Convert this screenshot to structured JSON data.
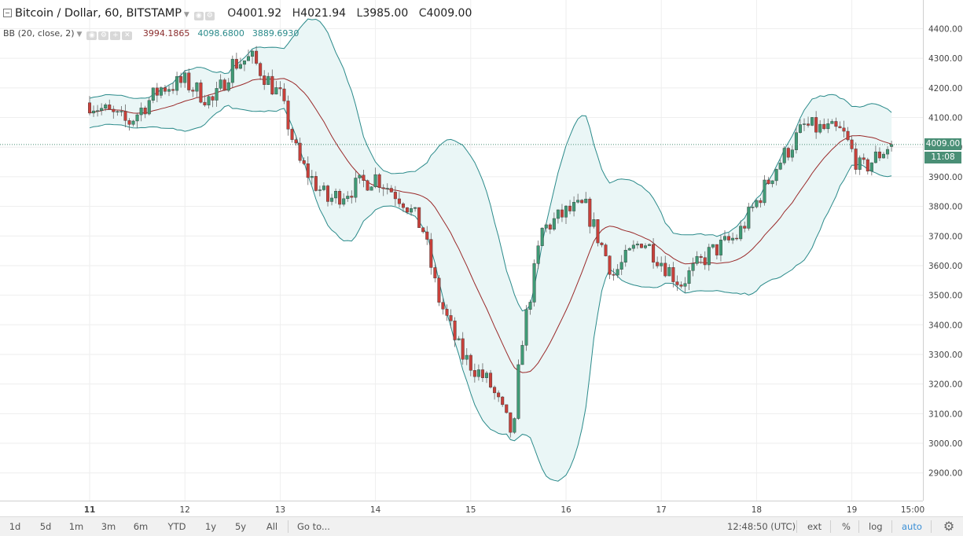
{
  "header": {
    "title": "Bitcoin / Dollar, 60, BITSTAMP",
    "ohlc": [
      {
        "key": "O",
        "value": "4001.92"
      },
      {
        "key": "H",
        "value": "4021.94"
      },
      {
        "key": "L",
        "value": "3985.00"
      },
      {
        "key": "C",
        "value": "4009.00"
      }
    ]
  },
  "indicator": {
    "label": "BB (20, close, 2)",
    "middle": "3994.1865",
    "upper": "4098.6800",
    "lower": "3889.6930"
  },
  "price_axis": {
    "ticks": [
      "4400.00",
      "4300.00",
      "4200.00",
      "4100.00",
      "4000.00",
      "3900.00",
      "3800.00",
      "3700.00",
      "3600.00",
      "3500.00",
      "3400.00",
      "3300.00",
      "3200.00",
      "3100.00",
      "3000.00",
      "2900.00"
    ],
    "last_price_label": "4009.00",
    "countdown_label": "11:08"
  },
  "time_axis": {
    "ticks": [
      "11",
      "12",
      "13",
      "14",
      "15",
      "16",
      "17",
      "18",
      "19",
      "15:00"
    ]
  },
  "bottom_toolbar": {
    "timeframes": [
      "1d",
      "5d",
      "1m",
      "3m",
      "6m",
      "YTD",
      "1y",
      "5y",
      "All"
    ],
    "goto": "Go to...",
    "clock": "12:48:50 (UTC)",
    "ext": "ext",
    "percent": "%",
    "log": "log",
    "auto": "auto"
  },
  "colors": {
    "up": "#3f9b76",
    "down": "#c8403a",
    "band": "#2a8a8a",
    "band_fill": "#eaf6f6",
    "middle": "#9a2a2a",
    "last_price_tag": "#4a8f76"
  },
  "chart_data": {
    "type": "candlestick",
    "title": "Bitcoin / Dollar, 60, BITSTAMP",
    "xlabel": "",
    "ylabel": "",
    "ylim": [
      2850,
      4450
    ],
    "x_ticks": [
      "11",
      "12",
      "13",
      "14",
      "15",
      "16",
      "17",
      "18",
      "19",
      "15:00"
    ],
    "grid": true,
    "close_path": [
      {
        "x": 0.0,
        "y": 4150
      },
      {
        "x": 0.4,
        "y": 4080
      },
      {
        "x": 0.75,
        "y": 4200
      },
      {
        "x": 1.0,
        "y": 4220
      },
      {
        "x": 1.3,
        "y": 4150
      },
      {
        "x": 1.5,
        "y": 4280
      },
      {
        "x": 1.7,
        "y": 4300
      },
      {
        "x": 2.0,
        "y": 4170
      },
      {
        "x": 2.2,
        "y": 3950
      },
      {
        "x": 2.5,
        "y": 3820
      },
      {
        "x": 3.0,
        "y": 3900
      },
      {
        "x": 3.3,
        "y": 3820
      },
      {
        "x": 3.5,
        "y": 3720
      },
      {
        "x": 3.65,
        "y": 3500
      },
      {
        "x": 3.9,
        "y": 3300
      },
      {
        "x": 4.2,
        "y": 3200
      },
      {
        "x": 4.45,
        "y": 3020
      },
      {
        "x": 4.52,
        "y": 3320
      },
      {
        "x": 4.75,
        "y": 3720
      },
      {
        "x": 5.0,
        "y": 3780
      },
      {
        "x": 5.2,
        "y": 3800
      },
      {
        "x": 5.5,
        "y": 3570
      },
      {
        "x": 5.8,
        "y": 3690
      },
      {
        "x": 6.2,
        "y": 3540
      },
      {
        "x": 6.5,
        "y": 3640
      },
      {
        "x": 6.8,
        "y": 3700
      },
      {
        "x": 7.2,
        "y": 3930
      },
      {
        "x": 7.5,
        "y": 4070
      },
      {
        "x": 7.9,
        "y": 4050
      },
      {
        "x": 8.1,
        "y": 3920
      },
      {
        "x": 8.4,
        "y": 4009
      }
    ],
    "last": {
      "open": 4001.92,
      "high": 4021.94,
      "low": 3985.0,
      "close": 4009.0
    },
    "indicators": {
      "bollinger": {
        "period": 20,
        "source": "close",
        "mult": 2,
        "middle": 3994.1865,
        "upper": 4098.68,
        "lower": 3889.693
      }
    }
  }
}
